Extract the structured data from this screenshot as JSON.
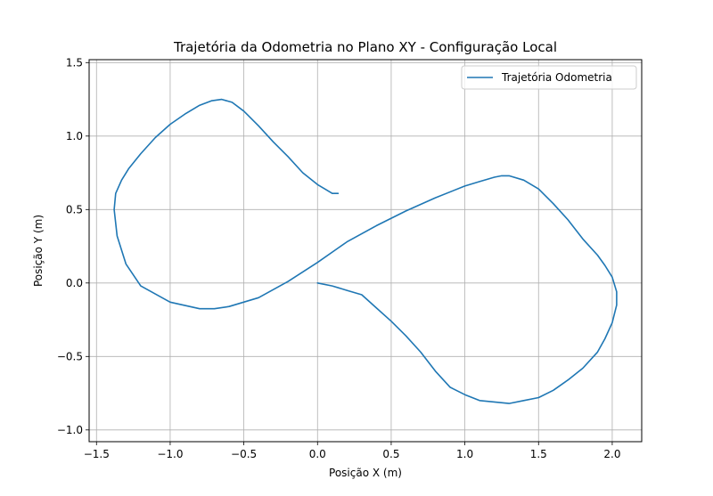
{
  "chart_data": {
    "type": "line",
    "title": "Trajetória da Odometria no Plano XY - Configuração Local",
    "xlabel": "Posição X (m)",
    "ylabel": "Posição Y (m)",
    "xlim": [
      -1.55,
      2.2
    ],
    "ylim": [
      -1.08,
      1.52
    ],
    "xticks": [
      -1.5,
      -1.0,
      -0.5,
      0.0,
      0.5,
      1.0,
      1.5,
      2.0
    ],
    "xtick_labels": [
      "−1.5",
      "−1.0",
      "−0.5",
      "0.0",
      "0.5",
      "1.0",
      "1.5",
      "2.0"
    ],
    "yticks": [
      -1.0,
      -0.5,
      0.0,
      0.5,
      1.0,
      1.5
    ],
    "ytick_labels": [
      "−1.0",
      "−0.5",
      "0.0",
      "0.5",
      "1.0",
      "1.5"
    ],
    "grid": true,
    "legend_position": "top-right",
    "series": [
      {
        "name": "Trajetória Odometria",
        "color": "#1f77b4",
        "x": [
          0.0,
          0.1,
          0.2,
          0.3,
          0.4,
          0.5,
          0.6,
          0.7,
          0.8,
          0.9,
          1.0,
          1.1,
          1.2,
          1.3,
          1.4,
          1.5,
          1.6,
          1.7,
          1.8,
          1.9,
          1.95,
          2.0,
          2.03,
          2.03,
          2.0,
          1.95,
          1.9,
          1.8,
          1.7,
          1.6,
          1.5,
          1.4,
          1.3,
          1.25,
          1.2,
          1.1,
          1.0,
          0.8,
          0.6,
          0.4,
          0.2,
          0.0,
          -0.2,
          -0.4,
          -0.6,
          -0.7,
          -0.8,
          -1.0,
          -1.2,
          -1.3,
          -1.36,
          -1.38,
          -1.37,
          -1.33,
          -1.28,
          -1.2,
          -1.1,
          -1.0,
          -0.9,
          -0.8,
          -0.72,
          -0.65,
          -0.58,
          -0.5,
          -0.4,
          -0.3,
          -0.2,
          -0.1,
          0.0,
          0.05,
          0.1,
          0.14
        ],
        "y": [
          0.0,
          -0.02,
          -0.05,
          -0.08,
          -0.17,
          -0.26,
          -0.36,
          -0.47,
          -0.6,
          -0.71,
          -0.76,
          -0.8,
          -0.81,
          -0.82,
          -0.8,
          -0.78,
          -0.73,
          -0.66,
          -0.58,
          -0.47,
          -0.38,
          -0.27,
          -0.15,
          -0.06,
          0.04,
          0.12,
          0.19,
          0.3,
          0.43,
          0.54,
          0.64,
          0.7,
          0.73,
          0.73,
          0.72,
          0.69,
          0.66,
          0.58,
          0.49,
          0.39,
          0.28,
          0.14,
          0.01,
          -0.1,
          -0.16,
          -0.175,
          -0.175,
          -0.13,
          -0.02,
          0.13,
          0.32,
          0.5,
          0.61,
          0.7,
          0.78,
          0.88,
          0.99,
          1.08,
          1.15,
          1.21,
          1.24,
          1.25,
          1.23,
          1.17,
          1.07,
          0.96,
          0.86,
          0.75,
          0.67,
          0.64,
          0.61,
          0.61
        ]
      }
    ]
  }
}
